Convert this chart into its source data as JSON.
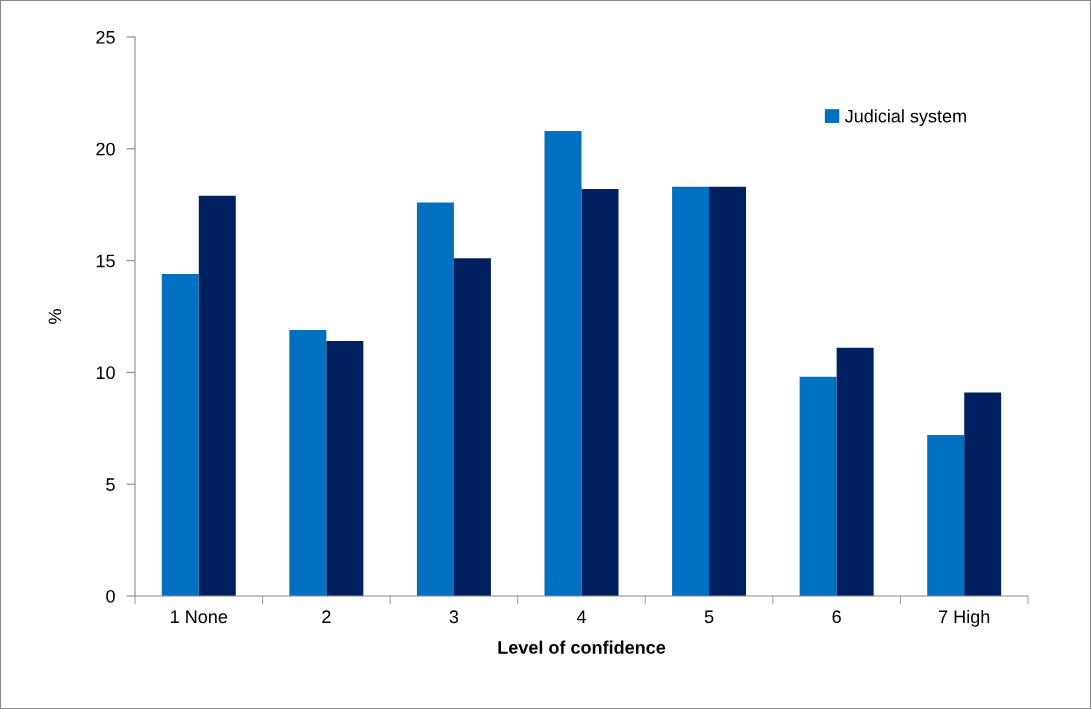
{
  "chart_data": {
    "type": "bar",
    "xlabel": "Level of confidence",
    "ylabel": "%",
    "categories": [
      "1 None",
      "2",
      "3",
      "4",
      "5",
      "6",
      "7 High"
    ],
    "series": [
      {
        "name": "Judicial system",
        "color": "#0070c0",
        "values": [
          14.4,
          11.9,
          17.6,
          20.8,
          18.3,
          9.8,
          7.2
        ]
      },
      {
        "color": "#002060",
        "values": [
          17.9,
          11.4,
          15.1,
          18.2,
          18.3,
          11.1,
          9.1
        ]
      }
    ],
    "ylim": [
      0,
      25
    ],
    "yticks": [
      0,
      5,
      10,
      15,
      20,
      25
    ],
    "grid": false,
    "legend": "top right"
  }
}
